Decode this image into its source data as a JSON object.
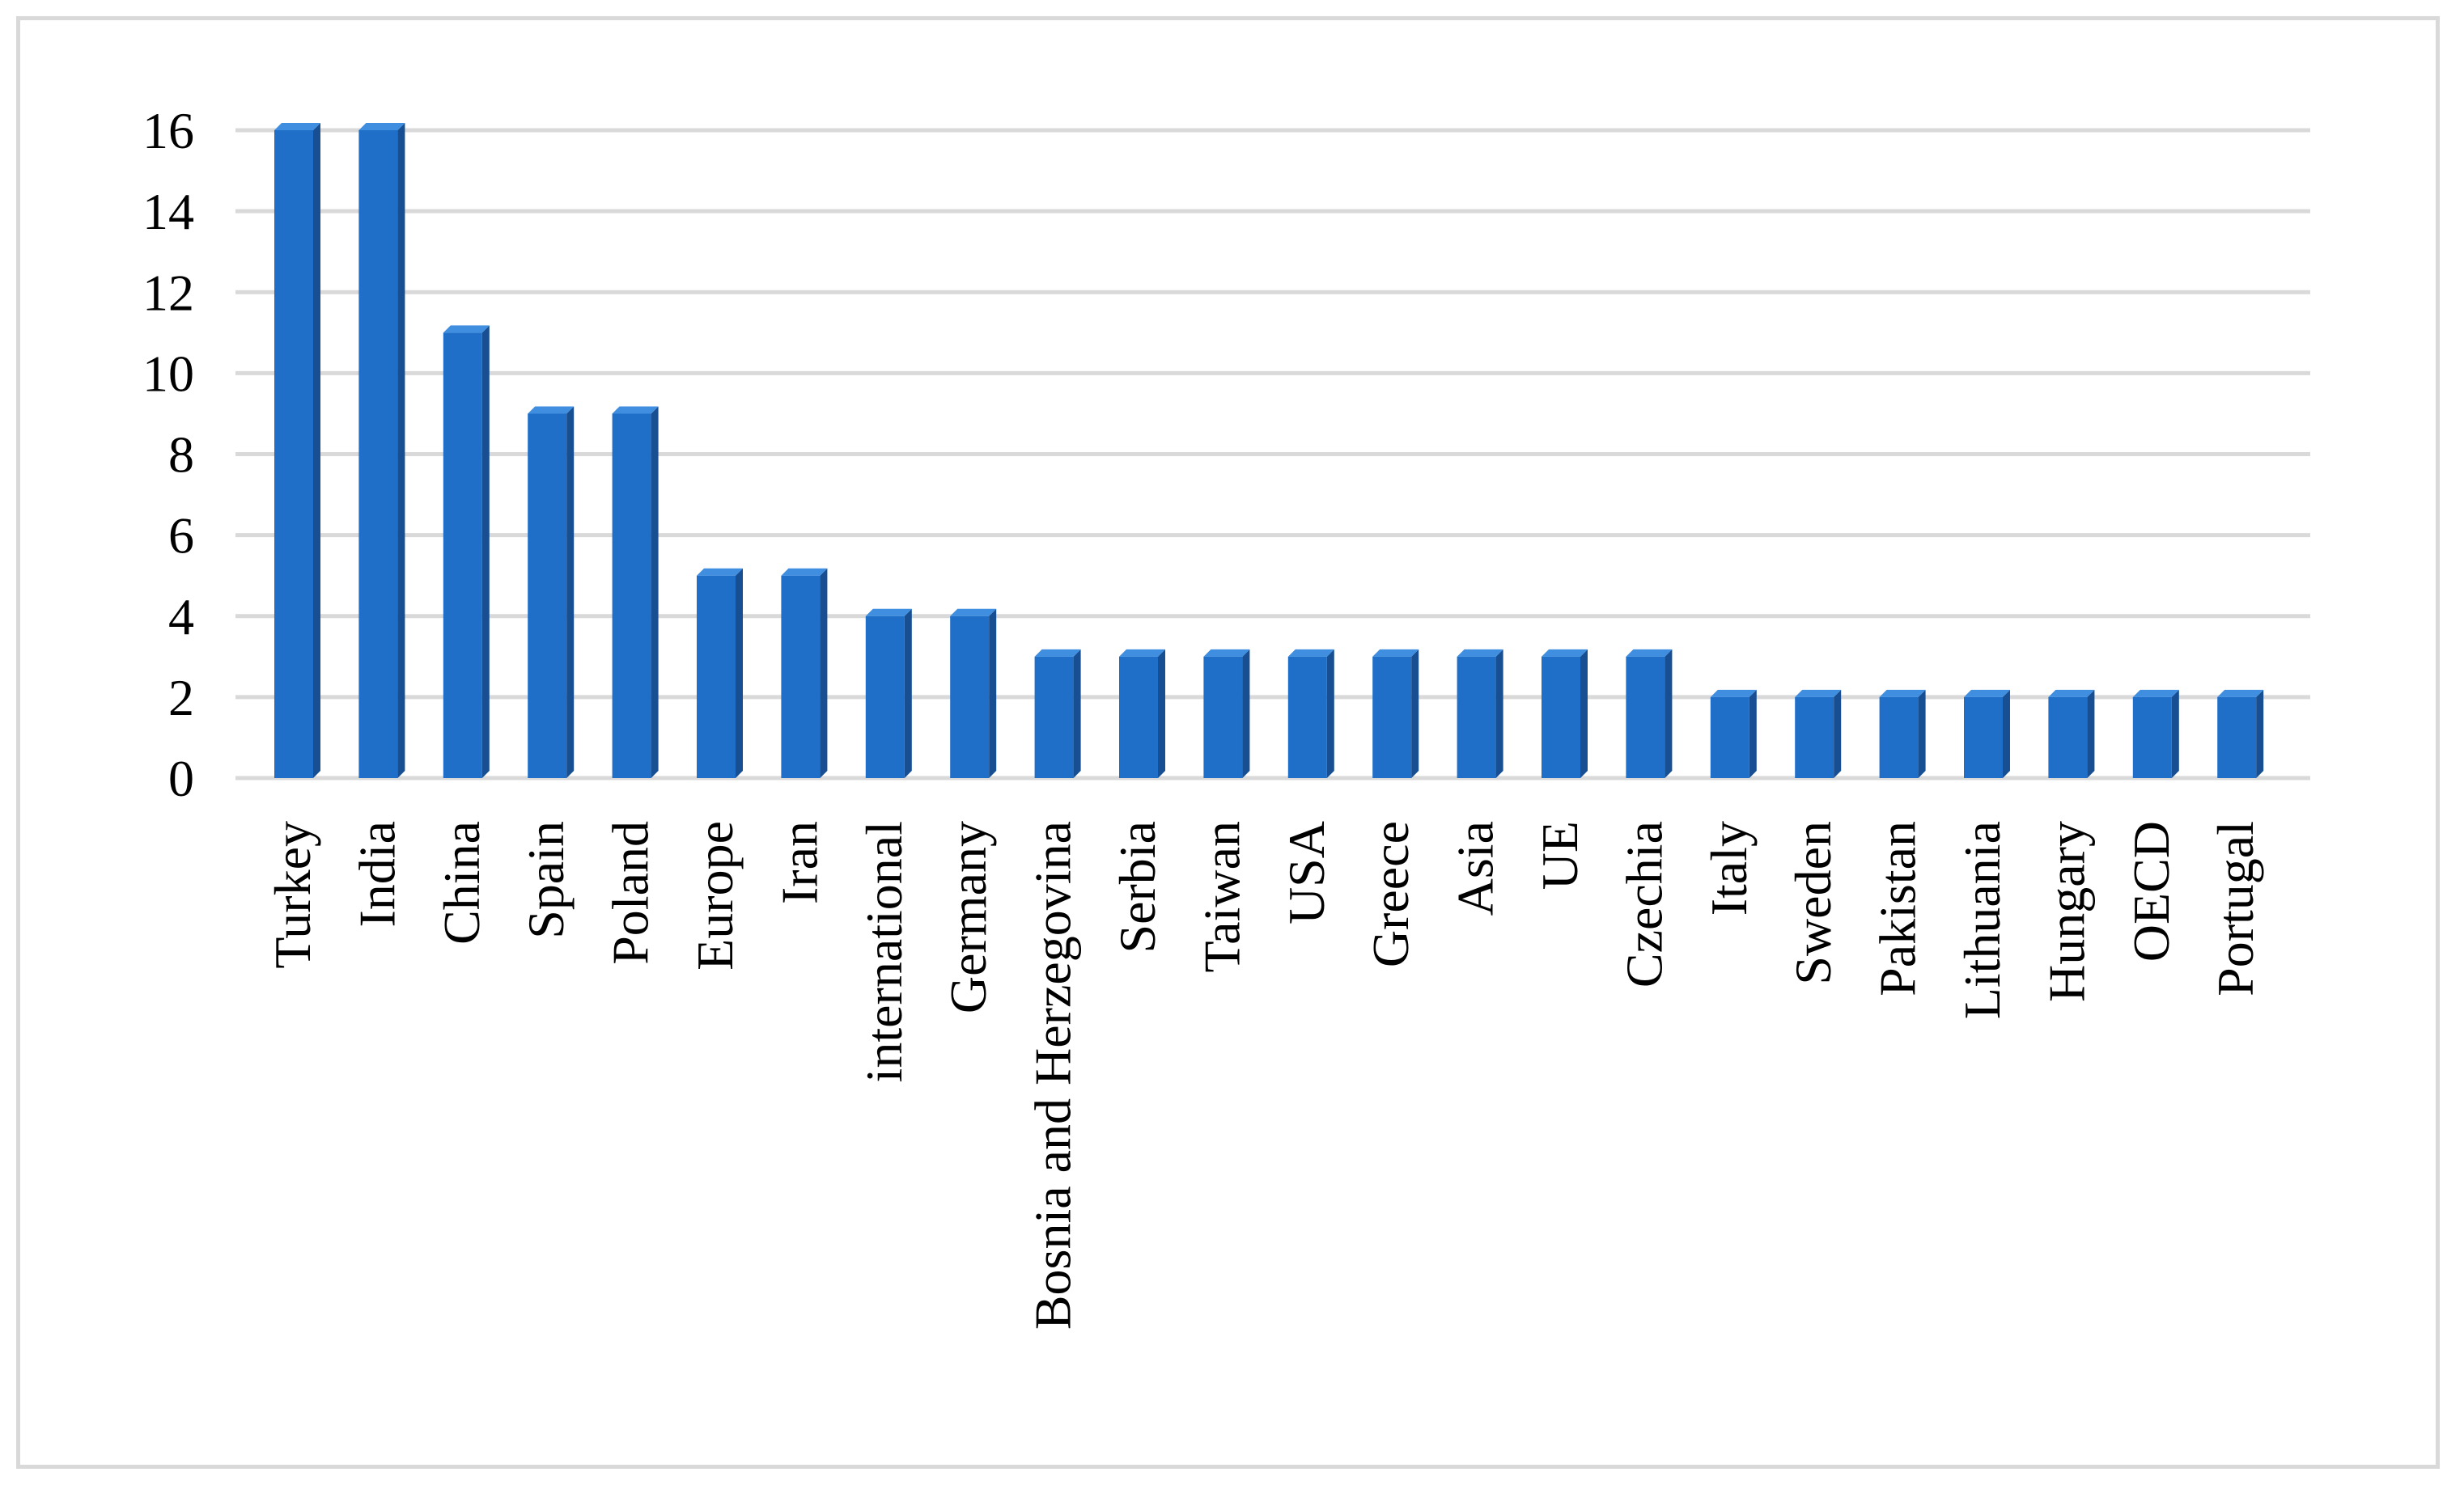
{
  "chart_data": {
    "type": "bar",
    "title": "",
    "xlabel": "",
    "ylabel": "",
    "categories": [
      "Turkey",
      "India",
      "China",
      "Spain",
      "Poland",
      "Europe",
      "Iran",
      "international",
      "Germany",
      "Bosnia and Herzegovina",
      "Serbia",
      "Taiwan",
      "USA",
      "Greece",
      "Asia",
      "UE",
      "Czechia",
      "Italy",
      "Sweden",
      "Pakistan",
      "Lithuania",
      "Hungary",
      "OECD",
      "Portugal"
    ],
    "values": [
      16,
      16,
      11,
      9,
      9,
      5,
      5,
      4,
      4,
      3,
      3,
      3,
      3,
      3,
      3,
      3,
      3,
      2,
      2,
      2,
      2,
      2,
      2,
      2
    ],
    "ylim": [
      0,
      16
    ],
    "yticks": [
      "0",
      "2",
      "4",
      "6",
      "8",
      "10",
      "12",
      "14",
      "16"
    ],
    "grid": true,
    "legend": "none",
    "colors": {
      "bar_front": "#1f6fc9",
      "bar_side": "#174f92",
      "bar_top": "#3f8ee0",
      "grid": "#d9d9d9",
      "frame": "#d9d9d9"
    }
  }
}
